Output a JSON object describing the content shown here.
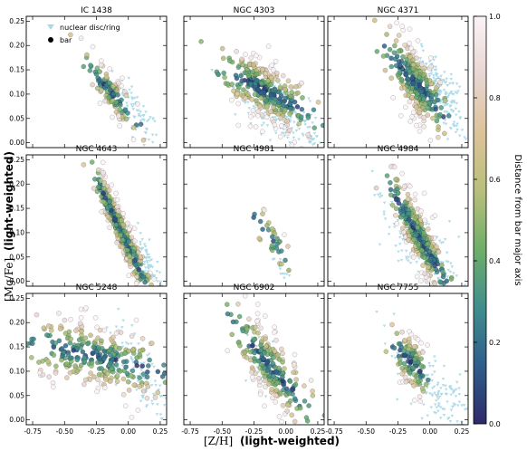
{
  "figure": {
    "xlabel_bracket": "[Z/H]",
    "xlabel_suffix": "(light-weighted)",
    "ylabel_bracket": "[Mg/Fe]",
    "ylabel_suffix": "(light-weighted)",
    "colorbar_label": "Distance from bar major axis",
    "colorbar_ticks": [
      "0.0",
      "0.2",
      "0.4",
      "0.6",
      "0.8",
      "1.0"
    ],
    "legend": {
      "ring_label": "nuclear disc/ring",
      "bar_label": "bar"
    },
    "colors": {
      "ring": "#a9d8e6",
      "colormap": [
        "#2e2a6b",
        "#2f5d8a",
        "#3f8e8c",
        "#6fae6a",
        "#b9bf7a",
        "#dcc39a",
        "#e8d6d2",
        "#fbf3f6"
      ]
    }
  },
  "chart_data": [
    {
      "type": "scatter",
      "title": "IC 1438",
      "xlim": [
        -0.8,
        0.3
      ],
      "ylim": [
        -0.01,
        0.26
      ],
      "xticks": [
        -0.75,
        -0.5,
        -0.25,
        0.0,
        0.25
      ],
      "yticks": [
        0.0,
        0.05,
        0.1,
        0.15,
        0.2,
        0.25
      ],
      "ring": {
        "center": [
          0.06,
          0.06
        ],
        "spread": [
          0.09,
          0.022
        ],
        "slope": -0.32,
        "count": 80
      },
      "bar": {
        "center": [
          -0.14,
          0.105
        ],
        "spread": [
          0.09,
          0.02
        ],
        "slope": -0.3,
        "count": 120
      }
    },
    {
      "type": "scatter",
      "title": "NGC 4303",
      "xlim": [
        -0.8,
        0.3
      ],
      "ylim": [
        -0.01,
        0.26
      ],
      "xticks": [
        -0.75,
        -0.5,
        -0.25,
        0.0,
        0.25
      ],
      "yticks": [
        0.0,
        0.05,
        0.1,
        0.15,
        0.2,
        0.25
      ],
      "ring": {
        "center": [
          0.0,
          0.05
        ],
        "spread": [
          0.2,
          0.03
        ],
        "slope": -0.16,
        "count": 180
      },
      "bar": {
        "center": [
          -0.18,
          0.11
        ],
        "spread": [
          0.17,
          0.03
        ],
        "slope": -0.14,
        "count": 320
      }
    },
    {
      "type": "scatter",
      "title": "NGC 4371",
      "xlim": [
        -0.8,
        0.3
      ],
      "ylim": [
        -0.01,
        0.26
      ],
      "xticks": [
        -0.75,
        -0.5,
        -0.25,
        0.0,
        0.25
      ],
      "yticks": [
        0.0,
        0.05,
        0.1,
        0.15,
        0.2,
        0.25
      ],
      "ring": {
        "center": [
          0.1,
          0.1
        ],
        "spread": [
          0.08,
          0.03
        ],
        "slope": -0.35,
        "count": 160
      },
      "bar": {
        "center": [
          -0.1,
          0.12
        ],
        "spread": [
          0.1,
          0.035
        ],
        "slope": -0.3,
        "count": 280
      }
    },
    {
      "type": "scatter",
      "title": "NGC 4643",
      "xlim": [
        -0.8,
        0.3
      ],
      "ylim": [
        -0.01,
        0.26
      ],
      "xticks": [
        -0.75,
        -0.5,
        -0.25,
        0.0,
        0.25
      ],
      "yticks": [
        0.0,
        0.05,
        0.1,
        0.15,
        0.2,
        0.25
      ],
      "ring": {
        "center": [
          0.15,
          0.04
        ],
        "spread": [
          0.05,
          0.02
        ],
        "slope": -0.4,
        "count": 60
      },
      "bar": {
        "center": [
          -0.05,
          0.1
        ],
        "spread": [
          0.1,
          0.022
        ],
        "slope": -0.55,
        "count": 320
      }
    },
    {
      "type": "scatter",
      "title": "NGC 4981",
      "xlim": [
        -0.8,
        0.3
      ],
      "ylim": [
        -0.01,
        0.26
      ],
      "xticks": [
        -0.75,
        -0.5,
        -0.25,
        0.0,
        0.25
      ],
      "yticks": [
        0.0,
        0.05,
        0.1,
        0.15,
        0.2,
        0.25
      ],
      "ring": {
        "center": [
          -0.02,
          0.02
        ],
        "spread": [
          0.05,
          0.01
        ],
        "slope": -0.3,
        "count": 15
      },
      "bar": {
        "center": [
          -0.12,
          0.09
        ],
        "spread": [
          0.08,
          0.025
        ],
        "slope": -0.35,
        "count": 35
      }
    },
    {
      "type": "scatter",
      "title": "NGC 4984",
      "xlim": [
        -0.8,
        0.3
      ],
      "ylim": [
        -0.01,
        0.26
      ],
      "xticks": [
        -0.75,
        -0.5,
        -0.25,
        0.0,
        0.25
      ],
      "yticks": [
        0.0,
        0.05,
        0.1,
        0.15,
        0.2,
        0.25
      ],
      "ring": {
        "center": [
          -0.05,
          0.06
        ],
        "spread": [
          0.2,
          0.035
        ],
        "slope": -0.2,
        "count": 140
      },
      "bar": {
        "center": [
          -0.08,
          0.09
        ],
        "spread": [
          0.1,
          0.03
        ],
        "slope": -0.45,
        "count": 320
      }
    },
    {
      "type": "scatter",
      "title": "NGC 5248",
      "xlim": [
        -0.8,
        0.3
      ],
      "ylim": [
        -0.01,
        0.26
      ],
      "xticks": [
        -0.75,
        -0.5,
        -0.25,
        0.0,
        0.25
      ],
      "yticks": [
        0.0,
        0.05,
        0.1,
        0.15,
        0.2,
        0.25
      ],
      "ring": {
        "center": [
          0.1,
          0.08
        ],
        "spread": [
          0.12,
          0.04
        ],
        "slope": -0.3,
        "count": 100
      },
      "bar": {
        "center": [
          -0.25,
          0.13
        ],
        "spread": [
          0.25,
          0.035
        ],
        "slope": -0.06,
        "count": 300
      }
    },
    {
      "type": "scatter",
      "title": "NGC 6902",
      "xlim": [
        -0.8,
        0.3
      ],
      "ylim": [
        -0.01,
        0.26
      ],
      "xticks": [
        -0.75,
        -0.5,
        -0.25,
        0.0,
        0.25
      ],
      "yticks": [
        0.0,
        0.05,
        0.1,
        0.15,
        0.2,
        0.25
      ],
      "ring": {
        "center": [
          -0.2,
          0.13
        ],
        "spread": [
          0.05,
          0.03
        ],
        "slope": -0.3,
        "count": 40
      },
      "bar": {
        "center": [
          -0.12,
          0.11
        ],
        "spread": [
          0.14,
          0.035
        ],
        "slope": -0.3,
        "count": 230
      }
    },
    {
      "type": "scatter",
      "title": "NGC 7755",
      "xlim": [
        -0.8,
        0.3
      ],
      "ylim": [
        -0.01,
        0.26
      ],
      "xticks": [
        -0.75,
        -0.5,
        -0.25,
        0.0,
        0.25
      ],
      "yticks": [
        0.0,
        0.05,
        0.1,
        0.15,
        0.2,
        0.25
      ],
      "ring": {
        "center": [
          0.05,
          0.06
        ],
        "spread": [
          0.16,
          0.03
        ],
        "slope": -0.22,
        "count": 150
      },
      "bar": {
        "center": [
          -0.15,
          0.12
        ],
        "spread": [
          0.07,
          0.03
        ],
        "slope": -0.25,
        "count": 120
      }
    }
  ]
}
